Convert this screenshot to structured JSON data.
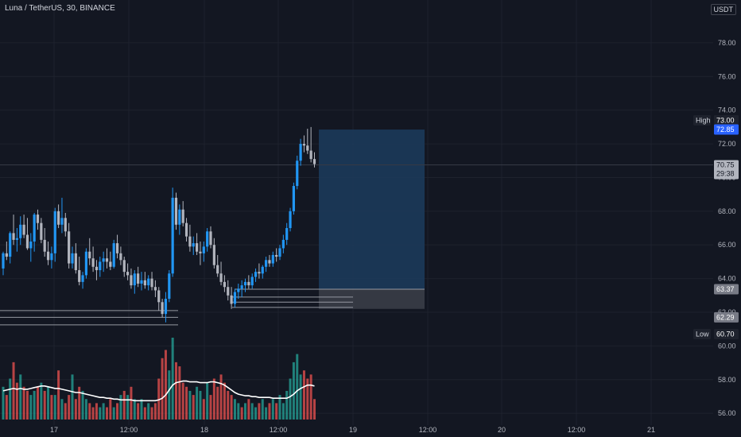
{
  "header": {
    "symbol_title": "Luna / TetherUS, 30, BINANCE",
    "currency": "USDT"
  },
  "colors": {
    "background": "#131722",
    "up": "#2196f3",
    "down": "#b2b5be",
    "volume_up": "#26a69a",
    "volume_down": "#ef5350",
    "ma_line": "#ffffff",
    "level_line": "#787b86",
    "target_zone": "#1c3a5a",
    "stop_zone": "#3a3d47",
    "high_label_bg": "#2962ff",
    "high_tag_bg": "#1e222d"
  },
  "chart_data": {
    "type": "candlestick",
    "y_ticks": [
      "56.00",
      "58.00",
      "60.00",
      "62.00",
      "64.00",
      "66.00",
      "68.00",
      "70.00",
      "72.00",
      "74.00",
      "76.00",
      "78.00"
    ],
    "ylim": [
      55.3,
      79.6
    ],
    "x_ticks": [
      "17",
      "12:00",
      "18",
      "12:00",
      "19",
      "12:00",
      "20",
      "12:00",
      "21"
    ],
    "price_labels": {
      "high_tag": "High",
      "high_value": "73.00",
      "last_blue": "72.85",
      "current_price": "70.75",
      "countdown": "29:38",
      "level_63": "63.37",
      "level_62": "62.29",
      "low_tag": "Low",
      "low_value": "60.70"
    },
    "candles": [
      [
        64.6,
        65.6,
        64.2,
        65.5
      ],
      [
        65.5,
        66.2,
        65.1,
        65.3
      ],
      [
        65.3,
        66.8,
        64.9,
        66.7
      ],
      [
        66.7,
        67.8,
        66.0,
        66.3
      ],
      [
        66.3,
        67.0,
        65.6,
        66.4
      ],
      [
        66.4,
        67.7,
        66.0,
        67.2
      ],
      [
        67.2,
        67.8,
        66.4,
        66.6
      ],
      [
        66.6,
        67.6,
        65.7,
        65.8
      ],
      [
        65.8,
        66.7,
        65.0,
        66.2
      ],
      [
        66.2,
        67.9,
        65.6,
        67.8
      ],
      [
        67.8,
        68.1,
        66.9,
        67.3
      ],
      [
        67.3,
        67.6,
        66.1,
        66.3
      ],
      [
        66.3,
        67.0,
        65.3,
        65.6
      ],
      [
        65.6,
        66.2,
        64.8,
        65.1
      ],
      [
        65.1,
        65.9,
        64.6,
        65.5
      ],
      [
        65.5,
        68.2,
        65.0,
        68.0
      ],
      [
        68.0,
        68.4,
        67.0,
        67.2
      ],
      [
        67.2,
        68.8,
        66.7,
        67.6
      ],
      [
        67.6,
        67.9,
        66.5,
        66.8
      ],
      [
        66.8,
        67.3,
        64.6,
        64.9
      ],
      [
        64.9,
        65.9,
        64.6,
        65.5
      ],
      [
        65.5,
        66.1,
        64.3,
        64.5
      ],
      [
        64.5,
        65.3,
        63.6,
        63.8
      ],
      [
        63.8,
        64.4,
        63.4,
        64.2
      ],
      [
        64.2,
        65.8,
        64.0,
        65.6
      ],
      [
        65.6,
        66.4,
        64.8,
        65.2
      ],
      [
        65.2,
        65.9,
        64.4,
        64.7
      ],
      [
        64.7,
        65.1,
        63.9,
        64.5
      ],
      [
        64.5,
        65.3,
        64.1,
        65.0
      ],
      [
        65.0,
        65.6,
        64.4,
        65.2
      ],
      [
        65.2,
        65.8,
        64.6,
        65.0
      ],
      [
        65.0,
        65.6,
        64.5,
        64.7
      ],
      [
        64.7,
        66.3,
        64.6,
        66.1
      ],
      [
        66.1,
        66.6,
        65.2,
        65.5
      ],
      [
        65.5,
        65.9,
        64.8,
        65.1
      ],
      [
        65.1,
        65.3,
        64.1,
        64.4
      ],
      [
        64.4,
        64.9,
        63.9,
        64.2
      ],
      [
        64.2,
        64.6,
        63.4,
        63.6
      ],
      [
        63.6,
        64.5,
        63.1,
        64.3
      ],
      [
        64.3,
        64.7,
        63.5,
        63.7
      ],
      [
        63.7,
        64.4,
        63.3,
        63.9
      ],
      [
        63.9,
        64.4,
        63.4,
        63.6
      ],
      [
        63.6,
        64.2,
        63.3,
        64.0
      ],
      [
        64.0,
        64.4,
        63.3,
        63.5
      ],
      [
        63.5,
        63.9,
        62.9,
        63.3
      ],
      [
        63.3,
        63.5,
        62.1,
        62.6
      ],
      [
        62.6,
        62.8,
        61.7,
        61.9
      ],
      [
        61.9,
        63.2,
        61.4,
        62.8
      ],
      [
        62.8,
        64.5,
        62.6,
        64.3
      ],
      [
        64.3,
        69.4,
        64.1,
        68.8
      ],
      [
        68.8,
        69.1,
        66.9,
        67.2
      ],
      [
        67.2,
        68.4,
        66.6,
        68.1
      ],
      [
        68.1,
        68.6,
        67.1,
        67.3
      ],
      [
        67.3,
        67.6,
        66.2,
        66.5
      ],
      [
        66.5,
        67.2,
        65.6,
        65.9
      ],
      [
        65.9,
        66.5,
        65.4,
        66.1
      ],
      [
        66.1,
        66.7,
        65.4,
        65.6
      ],
      [
        65.6,
        66.2,
        64.8,
        65.5
      ],
      [
        65.5,
        66.2,
        65.0,
        65.9
      ],
      [
        65.9,
        67.0,
        65.6,
        66.8
      ],
      [
        66.8,
        67.1,
        65.8,
        66.0
      ],
      [
        66.0,
        66.4,
        64.6,
        64.8
      ],
      [
        64.8,
        65.4,
        64.1,
        64.3
      ],
      [
        64.3,
        65.0,
        63.6,
        63.8
      ],
      [
        63.8,
        64.2,
        63.2,
        63.5
      ],
      [
        63.5,
        63.9,
        62.7,
        63.0
      ],
      [
        63.0,
        63.5,
        62.2,
        62.5
      ],
      [
        62.5,
        63.4,
        62.3,
        63.2
      ],
      [
        63.2,
        63.7,
        62.8,
        63.4
      ],
      [
        63.4,
        63.9,
        62.9,
        63.6
      ],
      [
        63.6,
        64.0,
        63.2,
        63.8
      ],
      [
        63.8,
        64.2,
        63.4,
        63.6
      ],
      [
        63.6,
        64.3,
        63.4,
        64.1
      ],
      [
        64.1,
        64.6,
        63.8,
        64.4
      ],
      [
        64.4,
        64.9,
        64.0,
        64.3
      ],
      [
        64.3,
        64.8,
        64.0,
        64.7
      ],
      [
        64.7,
        65.3,
        64.4,
        65.1
      ],
      [
        65.1,
        65.4,
        64.7,
        64.9
      ],
      [
        64.9,
        65.6,
        64.7,
        65.4
      ],
      [
        65.4,
        65.8,
        65.0,
        65.3
      ],
      [
        65.3,
        66.0,
        65.1,
        65.8
      ],
      [
        65.8,
        66.6,
        65.5,
        66.3
      ],
      [
        66.3,
        67.3,
        66.0,
        67.0
      ],
      [
        67.0,
        68.2,
        66.8,
        68.0
      ],
      [
        68.0,
        69.7,
        67.8,
        69.5
      ],
      [
        69.5,
        71.3,
        69.3,
        71.0
      ],
      [
        71.0,
        72.3,
        70.7,
        72.0
      ],
      [
        72.0,
        72.5,
        71.5,
        71.9
      ],
      [
        71.9,
        72.9,
        71.4,
        71.6
      ],
      [
        71.6,
        73.0,
        70.9,
        71.1
      ],
      [
        71.1,
        71.5,
        70.6,
        70.8
      ]
    ],
    "volumes": [
      [
        0.4,
        "u"
      ],
      [
        0.3,
        "d"
      ],
      [
        0.5,
        "u"
      ],
      [
        0.7,
        "d"
      ],
      [
        0.45,
        "d"
      ],
      [
        0.55,
        "u"
      ],
      [
        0.4,
        "d"
      ],
      [
        0.35,
        "d"
      ],
      [
        0.3,
        "u"
      ],
      [
        0.35,
        "u"
      ],
      [
        0.4,
        "d"
      ],
      [
        0.45,
        "u"
      ],
      [
        0.35,
        "d"
      ],
      [
        0.4,
        "u"
      ],
      [
        0.3,
        "d"
      ],
      [
        0.3,
        "u"
      ],
      [
        0.6,
        "d"
      ],
      [
        0.25,
        "u"
      ],
      [
        0.2,
        "d"
      ],
      [
        0.3,
        "d"
      ],
      [
        0.55,
        "u"
      ],
      [
        0.25,
        "d"
      ],
      [
        0.4,
        "d"
      ],
      [
        0.35,
        "u"
      ],
      [
        0.25,
        "u"
      ],
      [
        0.2,
        "d"
      ],
      [
        0.15,
        "d"
      ],
      [
        0.2,
        "d"
      ],
      [
        0.15,
        "u"
      ],
      [
        0.2,
        "u"
      ],
      [
        0.15,
        "d"
      ],
      [
        0.25,
        "d"
      ],
      [
        0.15,
        "u"
      ],
      [
        0.2,
        "d"
      ],
      [
        0.3,
        "u"
      ],
      [
        0.35,
        "d"
      ],
      [
        0.3,
        "u"
      ],
      [
        0.4,
        "d"
      ],
      [
        0.25,
        "u"
      ],
      [
        0.2,
        "d"
      ],
      [
        0.25,
        "u"
      ],
      [
        0.15,
        "d"
      ],
      [
        0.2,
        "u"
      ],
      [
        0.15,
        "d"
      ],
      [
        0.2,
        "d"
      ],
      [
        0.5,
        "d"
      ],
      [
        0.75,
        "d"
      ],
      [
        0.85,
        "d"
      ],
      [
        0.6,
        "u"
      ],
      [
        1.0,
        "u"
      ],
      [
        0.7,
        "d"
      ],
      [
        0.65,
        "d"
      ],
      [
        0.45,
        "d"
      ],
      [
        0.4,
        "d"
      ],
      [
        0.35,
        "u"
      ],
      [
        0.3,
        "d"
      ],
      [
        0.4,
        "u"
      ],
      [
        0.35,
        "u"
      ],
      [
        0.25,
        "d"
      ],
      [
        0.45,
        "u"
      ],
      [
        0.3,
        "d"
      ],
      [
        0.5,
        "d"
      ],
      [
        0.4,
        "d"
      ],
      [
        0.55,
        "d"
      ],
      [
        0.45,
        "d"
      ],
      [
        0.35,
        "d"
      ],
      [
        0.3,
        "d"
      ],
      [
        0.25,
        "u"
      ],
      [
        0.2,
        "u"
      ],
      [
        0.15,
        "d"
      ],
      [
        0.2,
        "u"
      ],
      [
        0.25,
        "d"
      ],
      [
        0.2,
        "u"
      ],
      [
        0.15,
        "u"
      ],
      [
        0.2,
        "d"
      ],
      [
        0.25,
        "u"
      ],
      [
        0.15,
        "u"
      ],
      [
        0.2,
        "d"
      ],
      [
        0.25,
        "u"
      ],
      [
        0.2,
        "d"
      ],
      [
        0.3,
        "u"
      ],
      [
        0.2,
        "u"
      ],
      [
        0.35,
        "u"
      ],
      [
        0.5,
        "u"
      ],
      [
        0.7,
        "u"
      ],
      [
        0.8,
        "u"
      ],
      [
        0.55,
        "u"
      ],
      [
        0.6,
        "d"
      ],
      [
        0.5,
        "d"
      ],
      [
        0.55,
        "d"
      ],
      [
        0.25,
        "d"
      ]
    ],
    "volume_ma": [
      0.35,
      0.36,
      0.37,
      0.38,
      0.37,
      0.38,
      0.37,
      0.37,
      0.38,
      0.39,
      0.4,
      0.41,
      0.41,
      0.4,
      0.39,
      0.38,
      0.38,
      0.37,
      0.36,
      0.35,
      0.34,
      0.33,
      0.33,
      0.32,
      0.31,
      0.3,
      0.29,
      0.28,
      0.27,
      0.27,
      0.26,
      0.26,
      0.25,
      0.25,
      0.24,
      0.24,
      0.24,
      0.24,
      0.23,
      0.23,
      0.23,
      0.23,
      0.23,
      0.23,
      0.23,
      0.24,
      0.26,
      0.3,
      0.36,
      0.42,
      0.45,
      0.46,
      0.47,
      0.47,
      0.46,
      0.46,
      0.46,
      0.45,
      0.45,
      0.45,
      0.46,
      0.46,
      0.45,
      0.44,
      0.42,
      0.39,
      0.36,
      0.33,
      0.31,
      0.3,
      0.29,
      0.29,
      0.28,
      0.28,
      0.27,
      0.27,
      0.27,
      0.27,
      0.26,
      0.26,
      0.26,
      0.26,
      0.26,
      0.28,
      0.31,
      0.35,
      0.38,
      0.4,
      0.42,
      0.42,
      0.41
    ],
    "levels": {
      "support_lines": [
        61.25,
        61.7,
        62.1
      ],
      "entry_line": 63.37,
      "stop_lines": [
        62.29,
        62.6,
        62.9
      ],
      "target_top": 72.85,
      "target_bottom": 63.37,
      "stop_bottom": 62.2,
      "current": 70.75
    }
  }
}
